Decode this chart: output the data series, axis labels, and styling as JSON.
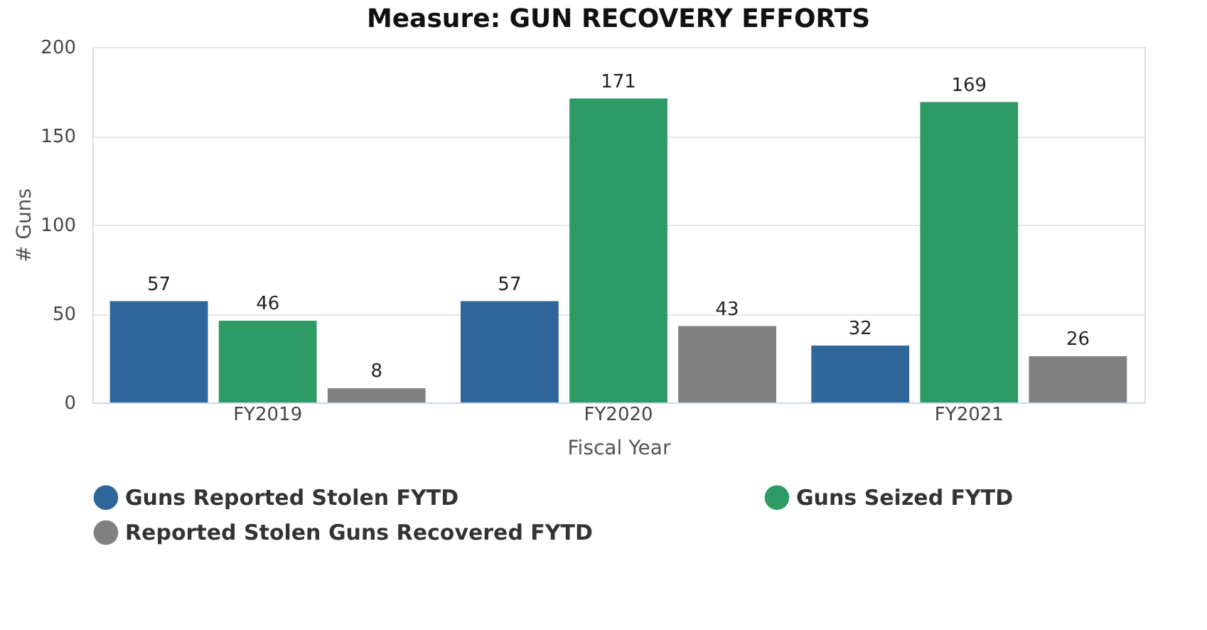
{
  "chart_data": {
    "type": "bar",
    "title": "Measure: GUN RECOVERY EFFORTS",
    "xlabel": "Fiscal Year",
    "ylabel": "# Guns",
    "categories": [
      "FY2019",
      "FY2020",
      "FY2021"
    ],
    "series": [
      {
        "name": "Guns Reported Stolen FYTD",
        "color": "#2e6699",
        "values": [
          57,
          57,
          32
        ]
      },
      {
        "name": "Guns Seized FYTD",
        "color": "#2e9a66",
        "values": [
          46,
          171,
          169
        ]
      },
      {
        "name": "Reported Stolen Guns Recovered FYTD",
        "color": "#808080",
        "values": [
          8,
          43,
          26
        ]
      }
    ],
    "ylim": [
      0,
      200
    ],
    "yticks": [
      0,
      50,
      100,
      150,
      200
    ],
    "grid": "y",
    "legend": "bottom",
    "data_labels": true
  }
}
